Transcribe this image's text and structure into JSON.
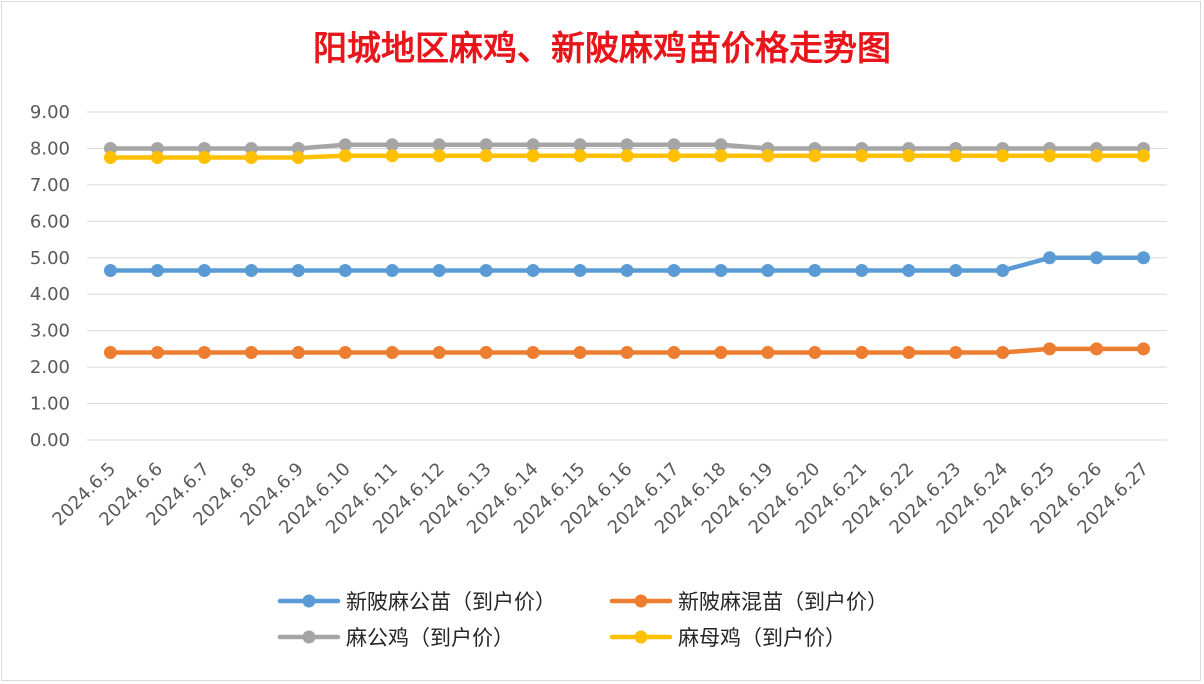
{
  "chart_data": {
    "type": "line",
    "title": "阳城地区麻鸡、新陂麻鸡苗价格走势图",
    "xlabel": "",
    "ylabel": "",
    "ylim": [
      0,
      9
    ],
    "y_ticks": [
      "0.00",
      "1.00",
      "2.00",
      "3.00",
      "4.00",
      "5.00",
      "6.00",
      "7.00",
      "8.00",
      "9.00"
    ],
    "grid": true,
    "legend_position": "bottom",
    "categories": [
      "2024.6.5",
      "2024.6.6",
      "2024.6.7",
      "2024.6.8",
      "2024.6.9",
      "2024.6.10",
      "2024.6.11",
      "2024.6.12",
      "2024.6.13",
      "2024.6.14",
      "2024.6.15",
      "2024.6.16",
      "2024.6.17",
      "2024.6.18",
      "2024.6.19",
      "2024.6.20",
      "2024.6.21",
      "2024.6.22",
      "2024.6.23",
      "2024.6.24",
      "2024.6.25",
      "2024.6.26",
      "2024.6.27"
    ],
    "series": [
      {
        "name": "新陂麻公苗（到户价）",
        "color": "#5b9bd5",
        "values": [
          4.65,
          4.65,
          4.65,
          4.65,
          4.65,
          4.65,
          4.65,
          4.65,
          4.65,
          4.65,
          4.65,
          4.65,
          4.65,
          4.65,
          4.65,
          4.65,
          4.65,
          4.65,
          4.65,
          4.65,
          5.0,
          5.0,
          5.0
        ]
      },
      {
        "name": "新陂麻混苗（到户价）",
        "color": "#ed7d31",
        "values": [
          2.4,
          2.4,
          2.4,
          2.4,
          2.4,
          2.4,
          2.4,
          2.4,
          2.4,
          2.4,
          2.4,
          2.4,
          2.4,
          2.4,
          2.4,
          2.4,
          2.4,
          2.4,
          2.4,
          2.4,
          2.5,
          2.5,
          2.5
        ]
      },
      {
        "name": "麻公鸡（到户价）",
        "color": "#a5a5a5",
        "values": [
          8.0,
          8.0,
          8.0,
          8.0,
          8.0,
          8.1,
          8.1,
          8.1,
          8.1,
          8.1,
          8.1,
          8.1,
          8.1,
          8.1,
          8.0,
          8.0,
          8.0,
          8.0,
          8.0,
          8.0,
          8.0,
          8.0,
          8.0
        ]
      },
      {
        "name": "麻母鸡（到户价）",
        "color": "#ffc000",
        "values": [
          7.75,
          7.75,
          7.75,
          7.75,
          7.75,
          7.8,
          7.8,
          7.8,
          7.8,
          7.8,
          7.8,
          7.8,
          7.8,
          7.8,
          7.8,
          7.8,
          7.8,
          7.8,
          7.8,
          7.8,
          7.8,
          7.8,
          7.8
        ]
      }
    ]
  }
}
